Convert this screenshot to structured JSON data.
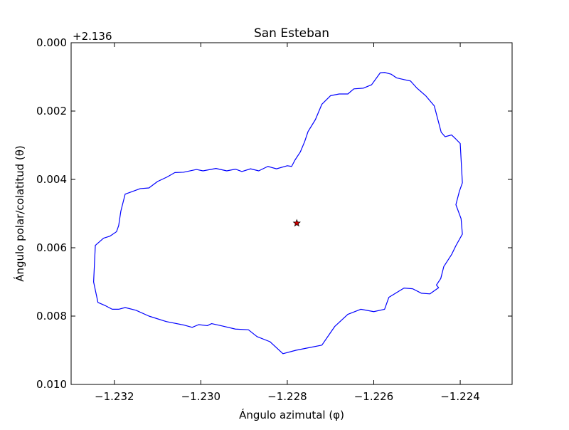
{
  "chart_data": {
    "type": "line",
    "title": "San Esteban",
    "xlabel": "Ángulo azimutal (φ)",
    "ylabel": "Ángulo polar/colatitud (θ)",
    "y_offset_label": "+2.136",
    "xlim": [
      -1.233,
      -1.2228
    ],
    "ylim": [
      0.01,
      0.0
    ],
    "y_axis_inverted": true,
    "y_offset": 2.136,
    "grid": false,
    "x_ticks": [
      {
        "value": -1.232,
        "label": "−1.232"
      },
      {
        "value": -1.23,
        "label": "−1.230"
      },
      {
        "value": -1.228,
        "label": "−1.228"
      },
      {
        "value": -1.226,
        "label": "−1.226"
      },
      {
        "value": -1.224,
        "label": "−1.224"
      }
    ],
    "y_ticks": [
      {
        "value": 0.0,
        "label": "0.000"
      },
      {
        "value": 0.002,
        "label": "0.002"
      },
      {
        "value": 0.004,
        "label": "0.004"
      },
      {
        "value": 0.006,
        "label": "0.006"
      },
      {
        "value": 0.008,
        "label": "0.008"
      },
      {
        "value": 0.01,
        "label": "0.010"
      }
    ],
    "series": [
      {
        "kind": "closed-outline",
        "color": "#0000ff",
        "x": [
          -1.23244,
          -1.23225,
          -1.2321,
          -1.23195,
          -1.2319,
          -1.23185,
          -1.23175,
          -1.2314,
          -1.2312,
          -1.231,
          -1.23078,
          -1.2306,
          -1.2304,
          -1.2301,
          -1.22995,
          -1.22965,
          -1.2294,
          -1.2292,
          -1.22905,
          -1.22885,
          -1.22866,
          -1.22845,
          -1.22825,
          -1.228,
          -1.2279,
          -1.22782,
          -1.2277,
          -1.2276,
          -1.22752,
          -1.22735,
          -1.2272,
          -1.227,
          -1.2268,
          -1.2266,
          -1.22646,
          -1.22624,
          -1.22605,
          -1.22585,
          -1.22575,
          -1.2256,
          -1.22547,
          -1.2253,
          -1.22515,
          -1.225,
          -1.2248,
          -1.2246,
          -1.22444,
          -1.22435,
          -1.2242,
          -1.2241,
          -1.224,
          -1.22395,
          -1.22402,
          -1.2241,
          -1.22398,
          -1.22395,
          -1.2241,
          -1.2242,
          -1.22438,
          -1.22445,
          -1.22455,
          -1.2245,
          -1.2247,
          -1.2249,
          -1.2251,
          -1.2253,
          -1.22565,
          -1.22575,
          -1.226,
          -1.2263,
          -1.2266,
          -1.2269,
          -1.2272,
          -1.22752,
          -1.2278,
          -1.2281,
          -1.2284,
          -1.2287,
          -1.2289,
          -1.2292,
          -1.2295,
          -1.22975,
          -1.22985,
          -1.23005,
          -1.2302,
          -1.2304,
          -1.2308,
          -1.2312,
          -1.2315,
          -1.23175,
          -1.2319,
          -1.23205,
          -1.2322,
          -1.23238,
          -1.23248,
          -1.23244
        ],
        "y": [
          0.00593,
          0.00572,
          0.00566,
          0.00553,
          0.00535,
          0.00493,
          0.00443,
          0.00427,
          0.00425,
          0.00406,
          0.00393,
          0.0038,
          0.00379,
          0.00371,
          0.00375,
          0.00368,
          0.00375,
          0.0037,
          0.00377,
          0.00369,
          0.00375,
          0.00362,
          0.00369,
          0.0036,
          0.00362,
          0.00343,
          0.0032,
          0.0029,
          0.0026,
          0.00225,
          0.0018,
          0.00155,
          0.0015,
          0.0015,
          0.00135,
          0.00133,
          0.00123,
          0.00088,
          0.00087,
          0.00092,
          0.00103,
          0.00108,
          0.00112,
          0.00133,
          0.00155,
          0.00185,
          0.00262,
          0.00275,
          0.0027,
          0.00282,
          0.00295,
          0.0041,
          0.00435,
          0.00474,
          0.00515,
          0.0056,
          0.00594,
          0.0062,
          0.00655,
          0.0069,
          0.00709,
          0.00717,
          0.00735,
          0.00733,
          0.0072,
          0.00718,
          0.00745,
          0.0078,
          0.00787,
          0.0078,
          0.00795,
          0.0083,
          0.00885,
          0.00893,
          0.009,
          0.0091,
          0.00875,
          0.0086,
          0.0084,
          0.00838,
          0.00829,
          0.00822,
          0.00828,
          0.00825,
          0.00833,
          0.00826,
          0.00816,
          0.008,
          0.00783,
          0.00775,
          0.0078,
          0.0078,
          0.0077,
          0.0076,
          0.007,
          0.00593
        ]
      }
    ],
    "markers": [
      {
        "kind": "star",
        "x": -1.22778,
        "y": 0.00528,
        "fill": "#cc0000",
        "stroke": "#000000"
      }
    ]
  }
}
